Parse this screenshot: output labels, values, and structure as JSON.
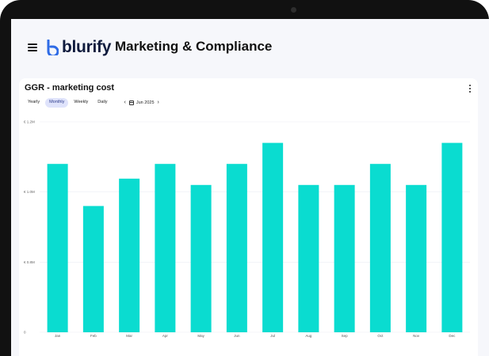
{
  "app": {
    "brand": "blurify",
    "page_title": "Marketing & Compliance"
  },
  "card": {
    "title": "GGR - marketing cost",
    "periods": [
      "Yearly",
      "Monthly",
      "Weekly",
      "Daily"
    ],
    "active_period": "Monthly",
    "date": "Jun 2025"
  },
  "colors": {
    "bar": "#0adcd0",
    "brand": "#2e6be6"
  },
  "icons": {
    "menu": "hamburger-icon",
    "more": "more-vertical-icon",
    "prev": "chevron-left-icon",
    "next": "chevron-right-icon",
    "date": "calendar-icon"
  },
  "chart_data": {
    "type": "bar",
    "categories": [
      "Jan",
      "Feb",
      "Mar",
      "Apr",
      "May",
      "Jun",
      "Jul",
      "Aug",
      "Sep",
      "Oct",
      "Nov",
      "Dec"
    ],
    "values": [
      0.8,
      0.6,
      0.73,
      0.8,
      0.7,
      0.8,
      0.9,
      0.7,
      0.7,
      0.8,
      0.7,
      0.9
    ],
    "ytick_labels": [
      "0",
      "€ 0.8M",
      "€ 1.0M",
      "€ 1.2M"
    ],
    "ylim": [
      0,
      1.0
    ],
    "grid": true
  }
}
